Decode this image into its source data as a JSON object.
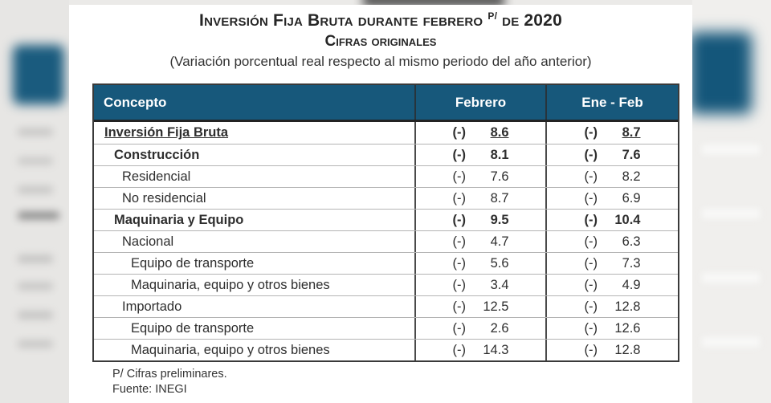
{
  "header": {
    "title_main": "Inversión Fija Bruta durante febrero",
    "title_sup": "P/",
    "title_tail": "de 2020",
    "subtitle": "Cifras originales",
    "note": "(Variación porcentual real respecto al mismo periodo del año anterior)"
  },
  "table": {
    "columns": [
      "Concepto",
      "Febrero",
      "Ene - Feb"
    ],
    "rows": [
      {
        "label": "Inversión Fija Bruta",
        "indent": 0,
        "bold": true,
        "underline": true,
        "febrero": {
          "sign": "(-)",
          "value": "8.6"
        },
        "ene_feb": {
          "sign": "(-)",
          "value": "8.7"
        }
      },
      {
        "label": "Construcción",
        "indent": 1,
        "bold": true,
        "underline": false,
        "febrero": {
          "sign": "(-)",
          "value": "8.1"
        },
        "ene_feb": {
          "sign": "(-)",
          "value": "7.6"
        }
      },
      {
        "label": "Residencial",
        "indent": 2,
        "bold": false,
        "underline": false,
        "febrero": {
          "sign": "(-)",
          "value": "7.6"
        },
        "ene_feb": {
          "sign": "(-)",
          "value": "8.2"
        }
      },
      {
        "label": "No residencial",
        "indent": 2,
        "bold": false,
        "underline": false,
        "febrero": {
          "sign": "(-)",
          "value": "8.7"
        },
        "ene_feb": {
          "sign": "(-)",
          "value": "6.9"
        }
      },
      {
        "label": "Maquinaria y Equipo",
        "indent": 1,
        "bold": true,
        "underline": false,
        "febrero": {
          "sign": "(-)",
          "value": "9.5"
        },
        "ene_feb": {
          "sign": "(-)",
          "value": "10.4"
        }
      },
      {
        "label": "Nacional",
        "indent": 2,
        "bold": false,
        "underline": false,
        "febrero": {
          "sign": "(-)",
          "value": "4.7"
        },
        "ene_feb": {
          "sign": "(-)",
          "value": "6.3"
        }
      },
      {
        "label": "Equipo de transporte",
        "indent": 3,
        "bold": false,
        "underline": false,
        "febrero": {
          "sign": "(-)",
          "value": "5.6"
        },
        "ene_feb": {
          "sign": "(-)",
          "value": "7.3"
        }
      },
      {
        "label": "Maquinaria, equipo y otros bienes",
        "indent": 3,
        "bold": false,
        "underline": false,
        "febrero": {
          "sign": "(-)",
          "value": "3.4"
        },
        "ene_feb": {
          "sign": "(-)",
          "value": "4.9"
        }
      },
      {
        "label": "Importado",
        "indent": 2,
        "bold": false,
        "underline": false,
        "febrero": {
          "sign": "(-)",
          "value": "12.5"
        },
        "ene_feb": {
          "sign": "(-)",
          "value": "12.8"
        }
      },
      {
        "label": "Equipo de transporte",
        "indent": 3,
        "bold": false,
        "underline": false,
        "febrero": {
          "sign": "(-)",
          "value": "2.6"
        },
        "ene_feb": {
          "sign": "(-)",
          "value": "12.6"
        }
      },
      {
        "label": "Maquinaria, equipo y otros bienes",
        "indent": 3,
        "bold": false,
        "underline": false,
        "febrero": {
          "sign": "(-)",
          "value": "14.3"
        },
        "ene_feb": {
          "sign": "(-)",
          "value": "12.8"
        }
      }
    ]
  },
  "footer": {
    "note1": "P/ Cifras preliminares.",
    "note2": "Fuente: INEGI"
  },
  "colors": {
    "header_bg": "#17587B",
    "header_text": "#FFFFFF",
    "body_text": "#2E2E2E",
    "grid_line": "#B4B4B4",
    "frame_line": "#3A3A3A"
  }
}
